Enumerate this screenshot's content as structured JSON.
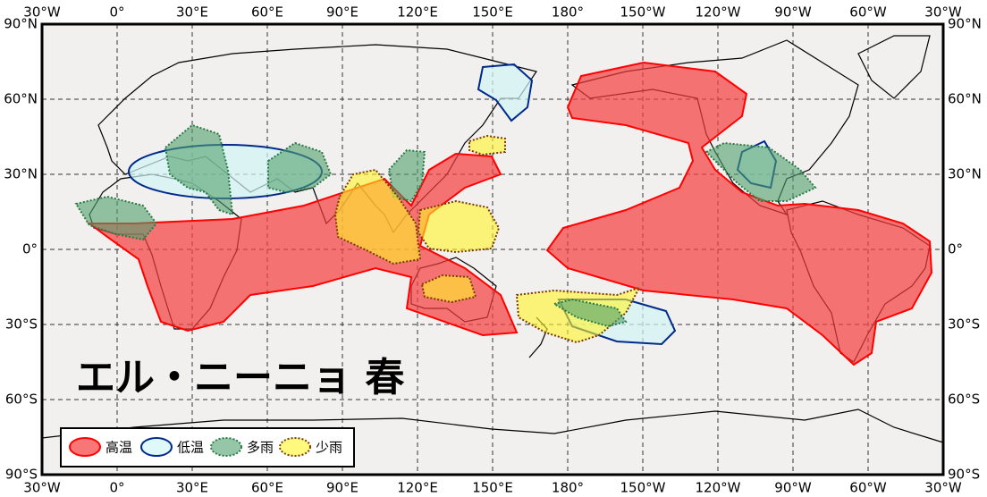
{
  "map": {
    "title": "エル・ニーニョ 春",
    "lon_labels": [
      "30°W",
      "0°",
      "30°E",
      "60°E",
      "90°E",
      "120°E",
      "150°E",
      "180°",
      "150°W",
      "120°W",
      "90°W",
      "60°W",
      "30°W"
    ],
    "lat_labels": [
      "90°N",
      "60°N",
      "30°N",
      "0°",
      "30°S",
      "60°S",
      "90°S"
    ],
    "legend": [
      "高温",
      "低温",
      "多雨",
      "少雨"
    ]
  }
}
